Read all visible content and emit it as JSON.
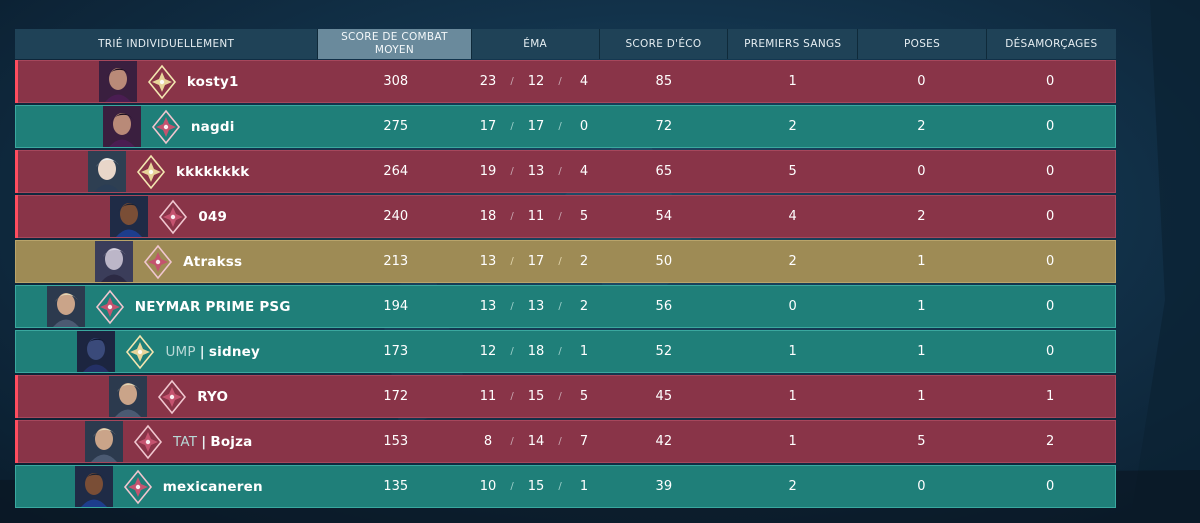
{
  "header": {
    "player_col": "TRIÉ INDIVIDUELLEMENT",
    "acs_col_line1": "SCORE DE COMBAT",
    "acs_col_line2": "MOYEN",
    "kda_col": "ÉMA",
    "eco_col": "SCORE D'ÉCO",
    "fb_col": "PREMIERS SANGS",
    "plants_col": "POSES",
    "defuses_col": "DÉSAMORÇAGES"
  },
  "colors": {
    "enemy": "#893448",
    "ally": "#1f7f79",
    "self": "#9e8b55"
  },
  "players": [
    {
      "name": "kosty1",
      "tag": "",
      "team": "red",
      "agent_icon": "agent-reyna-icon",
      "rank_icon": "rank-radiant-icon",
      "acs": "308",
      "kills": "23",
      "deaths": "12",
      "assists": "4",
      "econ": "85",
      "first_bloods": "1",
      "plants": "0",
      "defuses": "0"
    },
    {
      "name": "nagdi",
      "tag": "",
      "team": "teal",
      "agent_icon": "agent-reyna-icon",
      "rank_icon": "rank-immortal-icon",
      "acs": "275",
      "kills": "17",
      "deaths": "17",
      "assists": "0",
      "econ": "72",
      "first_bloods": "2",
      "plants": "2",
      "defuses": "0"
    },
    {
      "name": "kkkkkkkk",
      "tag": "",
      "team": "red",
      "agent_icon": "agent-jett-icon",
      "rank_icon": "rank-radiant-icon",
      "acs": "264",
      "kills": "19",
      "deaths": "13",
      "assists": "4",
      "econ": "65",
      "first_bloods": "5",
      "plants": "0",
      "defuses": "0"
    },
    {
      "name": "049",
      "tag": "",
      "team": "red",
      "agent_icon": "agent-neon-icon",
      "rank_icon": "rank-immortal-icon",
      "acs": "240",
      "kills": "18",
      "deaths": "11",
      "assists": "5",
      "econ": "54",
      "first_bloods": "4",
      "plants": "2",
      "defuses": "0"
    },
    {
      "name": "Atrakss",
      "tag": "",
      "team": "gold",
      "agent_icon": "agent-vyse-icon",
      "rank_icon": "rank-immortal-icon",
      "acs": "213",
      "kills": "13",
      "deaths": "17",
      "assists": "2",
      "econ": "50",
      "first_bloods": "2",
      "plants": "1",
      "defuses": "0"
    },
    {
      "name": "NEYMAR PRIME PSG",
      "tag": "",
      "team": "teal",
      "agent_icon": "agent-iso-icon",
      "rank_icon": "rank-immortal-icon",
      "acs": "194",
      "kills": "13",
      "deaths": "13",
      "assists": "2",
      "econ": "56",
      "first_bloods": "0",
      "plants": "1",
      "defuses": "0"
    },
    {
      "name": "sidney",
      "tag": "UMP",
      "team": "teal",
      "agent_icon": "agent-omen-icon",
      "rank_icon": "rank-radiant-icon",
      "acs": "173",
      "kills": "12",
      "deaths": "18",
      "assists": "1",
      "econ": "52",
      "first_bloods": "1",
      "plants": "1",
      "defuses": "0"
    },
    {
      "name": "RYO",
      "tag": "",
      "team": "red",
      "agent_icon": "agent-iso-icon",
      "rank_icon": "rank-immortal-icon",
      "acs": "172",
      "kills": "11",
      "deaths": "15",
      "assists": "5",
      "econ": "45",
      "first_bloods": "1",
      "plants": "1",
      "defuses": "1"
    },
    {
      "name": "Bojza",
      "tag": "TAT",
      "team": "red",
      "agent_icon": "agent-iso-icon",
      "rank_icon": "rank-immortal-icon",
      "acs": "153",
      "kills": "8",
      "deaths": "14",
      "assists": "7",
      "econ": "42",
      "first_bloods": "1",
      "plants": "5",
      "defuses": "2"
    },
    {
      "name": "mexicaneren",
      "tag": "",
      "team": "teal",
      "agent_icon": "agent-neon-icon",
      "rank_icon": "rank-immortal-icon",
      "acs": "135",
      "kills": "10",
      "deaths": "15",
      "assists": "1",
      "econ": "39",
      "first_bloods": "2",
      "plants": "0",
      "defuses": "0"
    }
  ]
}
